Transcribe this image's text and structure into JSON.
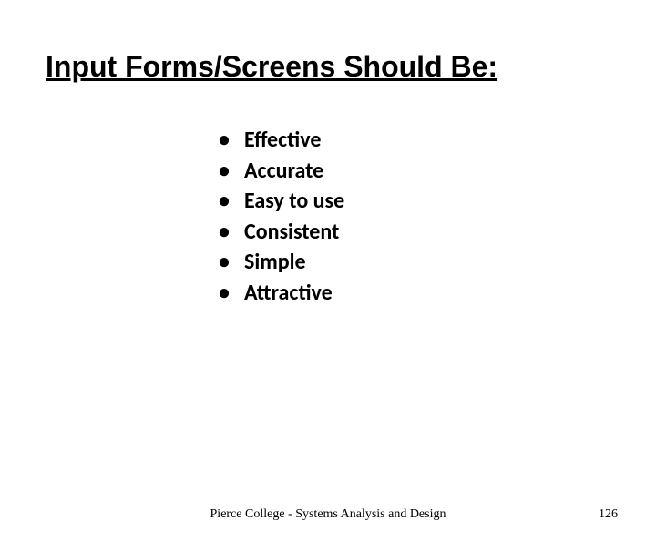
{
  "title": "Input Forms/Screens Should Be:",
  "bullets": [
    "Effective",
    "Accurate",
    "Easy to use",
    "Consistent",
    "Simple",
    "Attractive"
  ],
  "footer": "Pierce College - Systems Analysis and Design",
  "page_number": "126",
  "styling": {
    "background_color": "#ffffff",
    "title_fontsize": 32,
    "title_color": "#000000",
    "title_underline": true,
    "title_weight": "bold",
    "bullet_fontsize": 24,
    "bullet_color": "#000000",
    "bullet_weight": "bold",
    "footer_fontsize": 14,
    "footer_color": "#000000",
    "page_number_fontsize": 14,
    "page_number_color": "#000000"
  }
}
